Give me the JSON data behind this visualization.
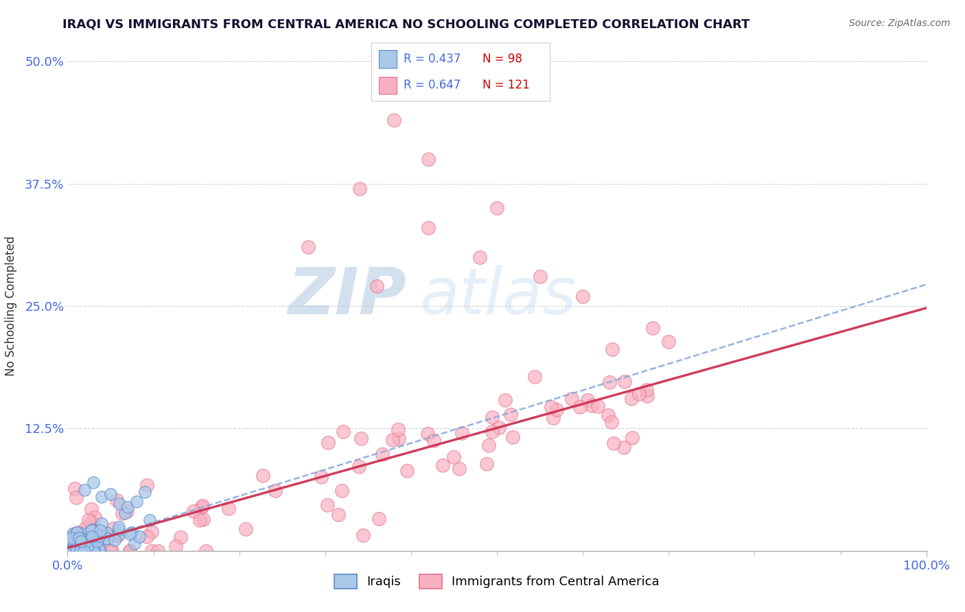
{
  "title": "IRAQI VS IMMIGRANTS FROM CENTRAL AMERICA NO SCHOOLING COMPLETED CORRELATION CHART",
  "source": "Source: ZipAtlas.com",
  "ylabel": "No Schooling Completed",
  "xlim": [
    0,
    1.0
  ],
  "ylim": [
    0,
    0.5
  ],
  "ytick_vals": [
    0.0,
    0.125,
    0.25,
    0.375,
    0.5
  ],
  "ytick_labels": [
    "",
    "12.5%",
    "25.0%",
    "37.5%",
    "50.0%"
  ],
  "xtick_vals": [
    0.0,
    1.0
  ],
  "xtick_labels": [
    "0.0%",
    "100.0%"
  ],
  "r_iraqi": 0.437,
  "n_iraqi": 98,
  "r_central": 0.647,
  "n_central": 121,
  "iraqi_scatter_face": "#aac8e8",
  "iraqi_scatter_edge": "#5588cc",
  "central_scatter_face": "#f8b0c0",
  "central_scatter_edge": "#e07090",
  "iraqi_line_color": "#88aadd",
  "central_line_color": "#cc3355",
  "legend_label_iraqi": "Iraqis",
  "legend_label_central": "Immigrants from Central America",
  "watermark_zip": "ZIP",
  "watermark_atlas": "atlas",
  "title_color": "#111133",
  "axis_tick_color": "#4169e1",
  "source_color": "#666666",
  "background_color": "#ffffff",
  "grid_color": "#cccccc",
  "legend_r_color": "#4169e1",
  "legend_n_color": "#cc0000",
  "iraqi_line_slope": 0.27,
  "iraqi_line_intercept": 0.002,
  "central_line_slope": 0.245,
  "central_line_intercept": 0.003
}
